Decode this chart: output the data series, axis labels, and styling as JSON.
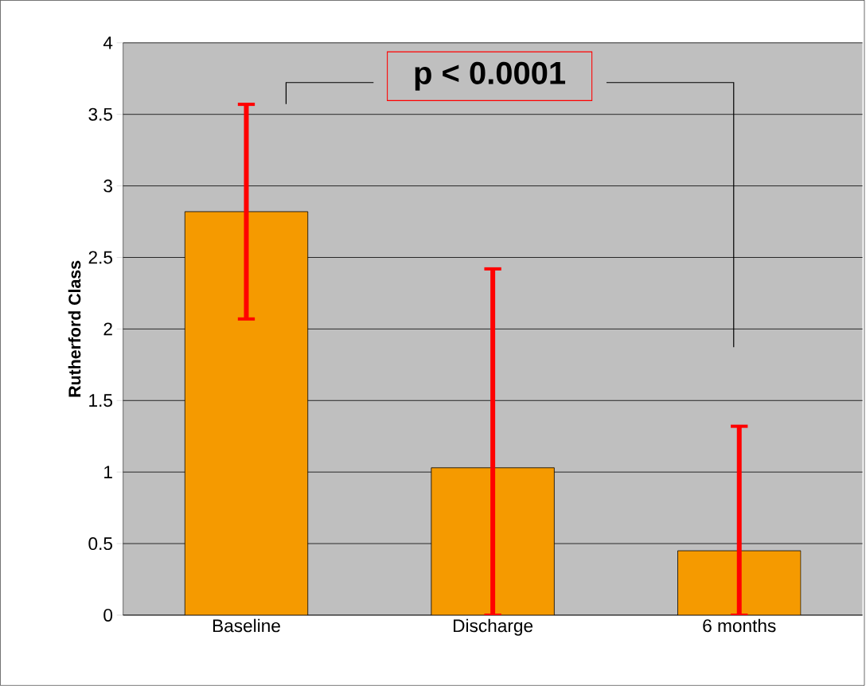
{
  "chart_data": {
    "type": "bar",
    "ylabel": "Rutherford Class",
    "categories": [
      "Baseline",
      "Discharge",
      "6 months"
    ],
    "values": [
      2.82,
      1.03,
      0.45
    ],
    "errors": [
      0.75,
      [
        0,
        2.42
      ],
      [
        0,
        1.32
      ]
    ],
    "color": "#f59a00",
    "ylim": [
      0,
      4
    ],
    "yticks": [
      0,
      0.5,
      1,
      1.5,
      2,
      2.5,
      3,
      3.5,
      4
    ],
    "grid": "y",
    "annotations": [
      "p < 0.0001"
    ]
  }
}
